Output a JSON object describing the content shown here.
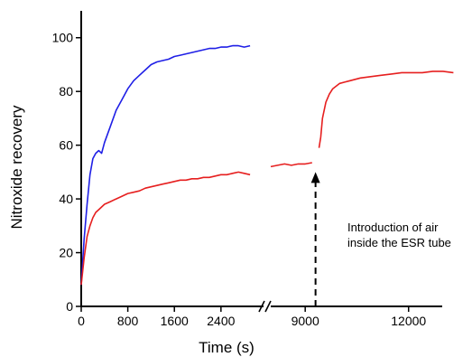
{
  "chart_data": {
    "type": "line",
    "xlabel": "Time (s)",
    "ylabel": "Nitroxide recovery",
    "ylim": [
      0,
      110
    ],
    "grid": false,
    "legend": "none",
    "x_axis_break": [
      3000,
      8800
    ],
    "xlim_segment1": [
      0,
      3100
    ],
    "xlim_segment2": [
      8000,
      13500
    ],
    "yticks": [
      0,
      20,
      40,
      60,
      80,
      100
    ],
    "xticks_segment1": [
      0,
      800,
      1600,
      2400
    ],
    "xticks_segment2": [
      9000,
      12000
    ],
    "series": [
      {
        "color": "#1f1fe6",
        "x": [
          0,
          50,
          100,
          150,
          200,
          250,
          300,
          350,
          400,
          500,
          600,
          700,
          800,
          900,
          1000,
          1100,
          1200,
          1300,
          1400,
          1500,
          1600,
          1700,
          1800,
          1900,
          2000,
          2100,
          2200,
          2300,
          2400,
          2500,
          2600,
          2700,
          2800,
          2900
        ],
        "y": [
          8,
          25,
          38,
          49,
          55,
          57,
          58,
          57,
          61,
          67,
          73,
          77,
          81,
          84,
          86,
          88,
          90,
          91,
          91.5,
          92,
          93,
          93.5,
          94,
          94.5,
          95,
          95.5,
          96,
          96,
          96.5,
          96.5,
          97,
          97,
          96.5,
          97
        ]
      },
      {
        "color": "#e61f1f",
        "x": [
          0,
          50,
          100,
          150,
          200,
          250,
          300,
          400,
          500,
          600,
          700,
          800,
          900,
          1000,
          1100,
          1200,
          1300,
          1400,
          1500,
          1600,
          1700,
          1800,
          1900,
          2000,
          2100,
          2200,
          2300,
          2400,
          2500,
          2600,
          2700,
          2800,
          2900
        ],
        "y": [
          8,
          18,
          26,
          30,
          33,
          35,
          36,
          38,
          39,
          40,
          41,
          42,
          42.5,
          43,
          44,
          44.5,
          45,
          45.5,
          46,
          46.5,
          47,
          47,
          47.5,
          47.5,
          48,
          48,
          48.5,
          49,
          49,
          49.5,
          50,
          49.5,
          49
        ]
      },
      {
        "color": "#e61f1f",
        "x": [
          8000,
          8200,
          8400,
          8600,
          8800,
          9000,
          9200
        ],
        "y": [
          52,
          52.5,
          53,
          52.5,
          53,
          53,
          53.5
        ]
      },
      {
        "color": "#e61f1f",
        "x": [
          9400,
          9450,
          9500,
          9600,
          9700,
          9800,
          10000,
          10300,
          10600,
          10900,
          11200,
          11500,
          11800,
          12100,
          12400,
          12700,
          13000,
          13300
        ],
        "y": [
          59,
          63,
          70,
          76,
          79,
          81,
          83,
          84,
          85,
          85.5,
          86,
          86.5,
          87,
          87,
          87,
          87.5,
          87.5,
          87
        ]
      }
    ],
    "annotation": {
      "line1": "Introduction of air",
      "line2": "inside the ESR tube",
      "arrow_x": 9300,
      "arrow_from_y": 0,
      "arrow_to_y": 50
    }
  }
}
